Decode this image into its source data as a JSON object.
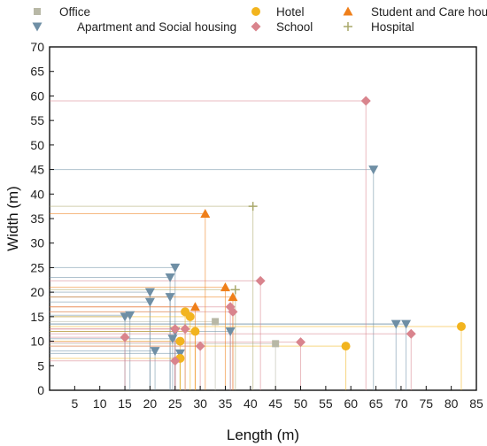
{
  "chart_data": {
    "type": "scatter",
    "title": "",
    "xlabel": "Length (m)",
    "ylabel": "Width (m)",
    "xlim": [
      0,
      85
    ],
    "ylim": [
      0,
      70
    ],
    "xticks": [
      5,
      10,
      15,
      20,
      25,
      30,
      35,
      40,
      45,
      50,
      55,
      60,
      65,
      70,
      75,
      80,
      85
    ],
    "yticks": [
      0,
      5,
      10,
      15,
      20,
      25,
      30,
      35,
      40,
      45,
      50,
      55,
      60,
      65,
      70
    ],
    "grid": false,
    "legend_position": "top",
    "drop_lines": true,
    "series": [
      {
        "name": "Office",
        "marker": "square",
        "color": "#b8b8a6",
        "points": [
          [
            33,
            14
          ],
          [
            45,
            9.5
          ]
        ]
      },
      {
        "name": "Apartment and Social housing",
        "marker": "triangle-down",
        "color": "#6f8fa5",
        "points": [
          [
            15,
            15
          ],
          [
            16,
            15.3
          ],
          [
            20,
            18
          ],
          [
            20,
            20
          ],
          [
            21,
            8
          ],
          [
            24,
            23
          ],
          [
            24,
            19
          ],
          [
            24.5,
            10.5
          ],
          [
            25,
            12
          ],
          [
            25,
            25
          ],
          [
            26,
            7.5
          ],
          [
            36,
            12
          ],
          [
            64.5,
            45
          ],
          [
            69,
            13.5
          ],
          [
            71,
            13.5
          ]
        ]
      },
      {
        "name": "Hotel",
        "marker": "circle",
        "color": "#f2b41e",
        "points": [
          [
            26,
            10
          ],
          [
            26,
            6.5
          ],
          [
            27,
            16
          ],
          [
            28,
            15
          ],
          [
            29,
            12
          ],
          [
            59,
            9
          ],
          [
            82,
            13
          ]
        ]
      },
      {
        "name": "School",
        "marker": "diamond",
        "color": "#d9848d",
        "points": [
          [
            15,
            10.8
          ],
          [
            25,
            6
          ],
          [
            25,
            12.5
          ],
          [
            27,
            12.5
          ],
          [
            30,
            9
          ],
          [
            36,
            17
          ],
          [
            36.5,
            16
          ],
          [
            42,
            22.3
          ],
          [
            50,
            9.8
          ],
          [
            63,
            59
          ],
          [
            72,
            11.5
          ]
        ]
      },
      {
        "name": "Student and Care housing",
        "marker": "triangle-up",
        "color": "#ef7f1a",
        "points": [
          [
            29,
            17
          ],
          [
            31,
            36
          ],
          [
            35,
            21
          ],
          [
            36.5,
            19
          ]
        ]
      },
      {
        "name": "Hospital",
        "marker": "plus",
        "color": "#a9a86a",
        "points": [
          [
            37,
            20.5
          ],
          [
            40.5,
            37.5
          ]
        ]
      }
    ]
  }
}
